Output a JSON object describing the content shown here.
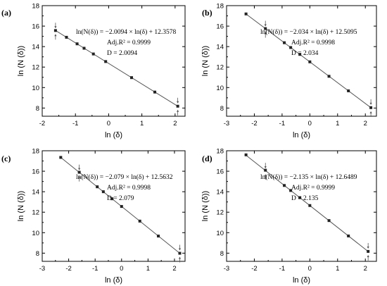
{
  "chart_data": [
    {
      "type": "scatter",
      "panel": "(a)",
      "xlabel": "ln (δ)",
      "ylabel": "ln (N (δ))",
      "xlim": [
        -2,
        2.3
      ],
      "ylim": [
        7.2,
        18
      ],
      "xticks": [
        -2,
        -1,
        0,
        1,
        2
      ],
      "yticks": [
        8,
        10,
        12,
        14,
        16,
        18
      ],
      "points": [
        {
          "x": -1.6,
          "y": 15.57
        },
        {
          "x": -1.27,
          "y": 14.91
        },
        {
          "x": -0.95,
          "y": 14.27
        },
        {
          "x": -0.74,
          "y": 13.84
        },
        {
          "x": -0.46,
          "y": 13.28
        },
        {
          "x": -0.09,
          "y": 12.54
        },
        {
          "x": 0.69,
          "y": 10.97
        },
        {
          "x": 1.39,
          "y": 9.56
        },
        {
          "x": 2.08,
          "y": 8.18
        }
      ],
      "fit": {
        "slope": -2.0094,
        "intercept": 12.3578,
        "x_range": [
          -1.62,
          2.12
        ]
      },
      "arrows_at_x": [
        -1.6,
        2.08
      ],
      "annotation": {
        "equation": "ln(N(δ)) = −2.0094 × ln(δ) + 12.3578",
        "r2": "Adj.R² = 0.9999",
        "d": "D = 2.0094"
      },
      "grid": false,
      "legend": "none"
    },
    {
      "type": "scatter",
      "panel": "(b)",
      "xlabel": "ln (δ)",
      "ylabel": "ln (N (δ))",
      "xlim": [
        -3,
        2.4
      ],
      "ylim": [
        7.2,
        18
      ],
      "xticks": [
        -3,
        -2,
        -1,
        0,
        1,
        2
      ],
      "yticks": [
        8,
        10,
        12,
        14,
        16,
        18
      ],
      "points": [
        {
          "x": -2.3,
          "y": 17.19
        },
        {
          "x": -1.6,
          "y": 15.76
        },
        {
          "x": -0.92,
          "y": 14.38
        },
        {
          "x": -0.69,
          "y": 13.91
        },
        {
          "x": -0.36,
          "y": 13.24
        },
        {
          "x": 0.0,
          "y": 12.51
        },
        {
          "x": 0.69,
          "y": 11.1
        },
        {
          "x": 1.39,
          "y": 9.68
        },
        {
          "x": 2.2,
          "y": 8.04
        }
      ],
      "fit": {
        "slope": -2.034,
        "intercept": 12.5095,
        "x_range": [
          -2.32,
          2.22
        ]
      },
      "arrows_at_x": [
        -1.6,
        2.2
      ],
      "annotation": {
        "equation": "ln(N(δ)) = −2.034 × ln(δ) + 12.5095",
        "r2": "Adj.R² = 0.9998",
        "d": "D = 2.034"
      },
      "grid": false,
      "legend": "none"
    },
    {
      "type": "scatter",
      "panel": "(c)",
      "xlabel": "ln (δ)",
      "ylabel": "ln (N (δ))",
      "xlim": [
        -3,
        2.4
      ],
      "ylim": [
        7.2,
        18
      ],
      "xticks": [
        -3,
        -2,
        -1,
        0,
        1,
        2
      ],
      "yticks": [
        8,
        10,
        12,
        14,
        16,
        18
      ],
      "points": [
        {
          "x": -2.3,
          "y": 17.35
        },
        {
          "x": -1.6,
          "y": 15.9
        },
        {
          "x": -0.92,
          "y": 14.48
        },
        {
          "x": -0.69,
          "y": 14.0
        },
        {
          "x": -0.36,
          "y": 13.31
        },
        {
          "x": 0.0,
          "y": 12.56
        },
        {
          "x": 0.69,
          "y": 11.13
        },
        {
          "x": 1.39,
          "y": 9.67
        },
        {
          "x": 2.2,
          "y": 7.99
        }
      ],
      "fit": {
        "slope": -2.079,
        "intercept": 12.5632,
        "x_range": [
          -2.32,
          2.22
        ]
      },
      "arrows_at_x": [
        -1.6,
        2.2
      ],
      "annotation": {
        "equation": "ln(N(δ)) = −2.079 × ln(δ) + 12.5632",
        "r2": "Adj.R² = 0.9998",
        "d": "D = 2.079"
      },
      "grid": false,
      "legend": "none"
    },
    {
      "type": "scatter",
      "panel": "(d)",
      "xlabel": "ln (δ)",
      "ylabel": "ln (N (δ))",
      "xlim": [
        -3,
        2.4
      ],
      "ylim": [
        7.2,
        18
      ],
      "xticks": [
        -3,
        -2,
        -1,
        0,
        1,
        2
      ],
      "yticks": [
        8,
        10,
        12,
        14,
        16,
        18
      ],
      "points": [
        {
          "x": -2.3,
          "y": 17.6
        },
        {
          "x": -1.6,
          "y": 16.1
        },
        {
          "x": -0.92,
          "y": 14.61
        },
        {
          "x": -0.69,
          "y": 14.12
        },
        {
          "x": -0.36,
          "y": 13.42
        },
        {
          "x": 0.0,
          "y": 12.65
        },
        {
          "x": 0.69,
          "y": 11.18
        },
        {
          "x": 1.39,
          "y": 9.68
        },
        {
          "x": 2.1,
          "y": 8.17
        }
      ],
      "fit": {
        "slope": -2.135,
        "intercept": 12.6489,
        "x_range": [
          -2.32,
          2.12
        ]
      },
      "arrows_at_x": [
        -1.6,
        2.1
      ],
      "annotation": {
        "equation": "ln(N(δ)) = −2.135 × ln(δ) + 12.6489",
        "r2": "Adj.R² = 0.9999",
        "d": "D = 2.135"
      },
      "grid": false,
      "legend": "none"
    }
  ],
  "colors": {
    "axis": "#000000",
    "points": "#222222",
    "fit_line": "#555555"
  }
}
